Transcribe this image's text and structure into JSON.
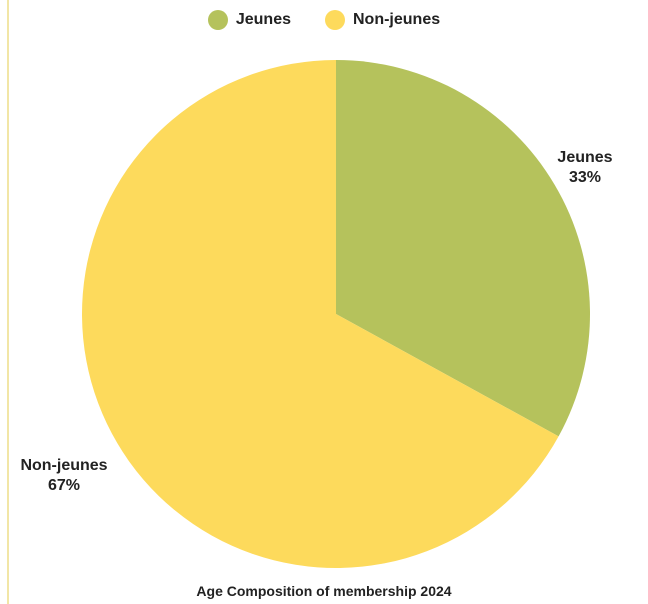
{
  "chart_data": {
    "type": "pie",
    "title": "Age Composition of membership 2024",
    "legend_position": "top-center",
    "slices": [
      {
        "label": "Jeunes",
        "value": 33,
        "display": "33%",
        "color": "#b5c25c"
      },
      {
        "label": "Non-jeunes",
        "value": 67,
        "display": "67%",
        "color": "#fdda5c"
      }
    ]
  }
}
